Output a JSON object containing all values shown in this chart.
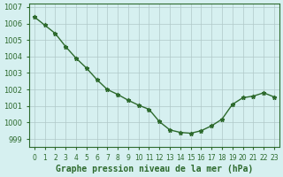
{
  "x": [
    0,
    1,
    2,
    3,
    4,
    5,
    6,
    7,
    8,
    9,
    10,
    11,
    12,
    13,
    14,
    15,
    16,
    17,
    18,
    19,
    20,
    21,
    22,
    23
  ],
  "y": [
    1006.4,
    1005.9,
    1005.4,
    1004.6,
    1003.9,
    1003.3,
    1002.6,
    1002.0,
    1001.7,
    1001.35,
    1001.05,
    1000.8,
    1000.05,
    999.55,
    999.4,
    999.35,
    999.5,
    999.8,
    1000.2,
    1001.1,
    1001.5,
    1001.6,
    1001.8,
    1001.55
  ],
  "line_color": "#2d6a2d",
  "marker": "*",
  "bg_color": "#d6f0f0",
  "grid_color": "#b0c8c8",
  "xlabel": "Graphe pression niveau de la mer (hPa)",
  "xlabel_color": "#2d6a2d",
  "tick_color": "#2d6a2d",
  "ylim": [
    998.5,
    1007.2
  ],
  "yticks": [
    999,
    1000,
    1001,
    1002,
    1003,
    1004,
    1005,
    1006,
    1007
  ],
  "xticks": [
    0,
    1,
    2,
    3,
    4,
    5,
    6,
    7,
    8,
    9,
    10,
    11,
    12,
    13,
    14,
    15,
    16,
    17,
    18,
    19,
    20,
    21,
    22,
    23
  ]
}
